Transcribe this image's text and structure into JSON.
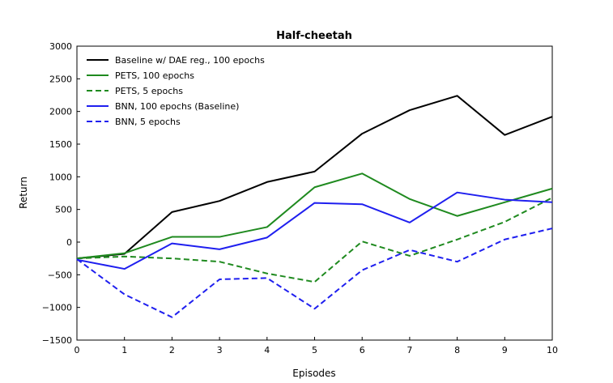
{
  "chart_data": {
    "type": "line",
    "title": "Half-cheetah",
    "xlabel": "Episodes",
    "ylabel": "Return",
    "xlim": [
      0,
      10
    ],
    "ylim": [
      -1500,
      3000
    ],
    "xticks": [
      0,
      1,
      2,
      3,
      4,
      5,
      6,
      7,
      8,
      9,
      10
    ],
    "yticks": [
      -1500,
      -1000,
      -500,
      0,
      500,
      1000,
      1500,
      2000,
      2500,
      3000
    ],
    "grid": false,
    "legend": "top-left",
    "x": [
      0,
      1,
      2,
      3,
      4,
      5,
      6,
      7,
      8,
      9,
      10
    ],
    "series": [
      {
        "name": "Baseline w/ DAE reg., 100 epochs",
        "color": "#000000",
        "dash": "solid",
        "values": [
          -250,
          -180,
          460,
          630,
          920,
          1080,
          1660,
          2020,
          2240,
          1640,
          1920
        ]
      },
      {
        "name": "PETS, 100 epochs",
        "color": "#1f8a1f",
        "dash": "solid",
        "values": [
          -250,
          -170,
          80,
          80,
          230,
          840,
          1050,
          660,
          400,
          610,
          820
        ]
      },
      {
        "name": "PETS, 5 epochs",
        "color": "#1f8a1f",
        "dash": "dashed",
        "values": [
          -250,
          -220,
          -250,
          -300,
          -480,
          -610,
          10,
          -210,
          40,
          310,
          680
        ]
      },
      {
        "name": "BNN, 100 epochs (Baseline)",
        "color": "#1f1fef",
        "dash": "solid",
        "values": [
          -270,
          -410,
          -20,
          -110,
          70,
          600,
          580,
          300,
          760,
          650,
          610
        ]
      },
      {
        "name": "BNN, 5 epochs",
        "color": "#1f1fef",
        "dash": "dashed",
        "values": [
          -260,
          -800,
          -1150,
          -570,
          -550,
          -1020,
          -430,
          -120,
          -300,
          40,
          210
        ]
      }
    ]
  }
}
